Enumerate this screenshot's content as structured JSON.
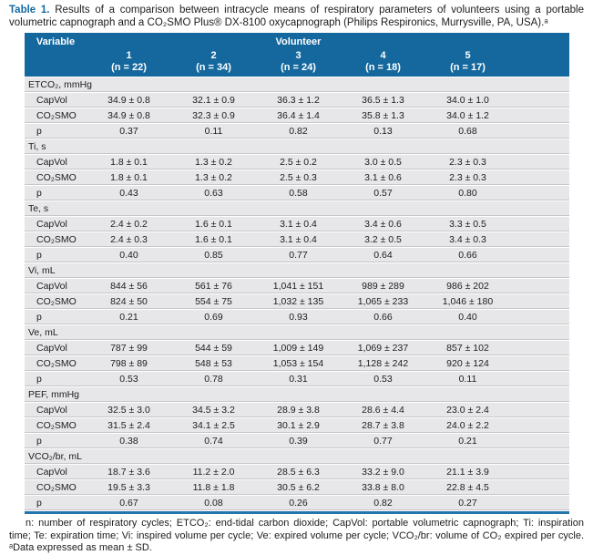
{
  "caption": {
    "label": "Table 1.",
    "text": " Results of a comparison between intracycle means of respiratory parameters of volunteers using a portable volumetric capnograph and a CO₂SMO Plus® DX-8100 oxycapnograph (Philips Respironics, Murrysville, PA, USA).ᵃ"
  },
  "table": {
    "header": {
      "variable_label": "Variable",
      "group_label": "Volunteer",
      "columns": [
        {
          "number": "1",
          "n": "(n = 22)"
        },
        {
          "number": "2",
          "n": "(n = 34)"
        },
        {
          "number": "3",
          "n": "(n = 24)"
        },
        {
          "number": "4",
          "n": "(n = 18)"
        },
        {
          "number": "5",
          "n": "(n = 17)"
        }
      ]
    },
    "sections": [
      {
        "name": "ETCO₂, mmHg",
        "rows": [
          {
            "label": "CapVol",
            "values": [
              "34.9 ± 0.8",
              "32.1 ± 0.9",
              "36.3 ± 1.2",
              "36.5 ± 1.3",
              "34.0 ± 1.0"
            ]
          },
          {
            "label": "CO₂SMO",
            "values": [
              "34.9 ± 0.8",
              "32.3 ± 0.9",
              "36.4 ± 1.4",
              "35.8 ± 1.3",
              "34.0 ± 1.2"
            ]
          },
          {
            "label": "p",
            "values": [
              "0.37",
              "0.11",
              "0.82",
              "0.13",
              "0.68"
            ]
          }
        ]
      },
      {
        "name": "Ti, s",
        "rows": [
          {
            "label": "CapVol",
            "values": [
              "1.8 ± 0.1",
              "1.3 ± 0.2",
              "2.5 ± 0.2",
              "3.0 ± 0.5",
              "2.3 ± 0.3"
            ]
          },
          {
            "label": "CO₂SMO",
            "values": [
              "1.8 ± 0.1",
              "1.3 ± 0.2",
              "2.5 ± 0.3",
              "3.1 ± 0.6",
              "2.3 ± 0.3"
            ]
          },
          {
            "label": "p",
            "values": [
              "0.43",
              "0.63",
              "0.58",
              "0.57",
              "0.80"
            ]
          }
        ]
      },
      {
        "name": "Te, s",
        "rows": [
          {
            "label": "CapVol",
            "values": [
              "2.4 ± 0.2",
              "1.6 ± 0.1",
              "3.1 ± 0.4",
              "3.4 ± 0.6",
              "3.3 ± 0.5"
            ]
          },
          {
            "label": "CO₂SMO",
            "values": [
              "2.4 ± 0.3",
              "1.6 ± 0.1",
              "3.1 ± 0.4",
              "3.2 ± 0.5",
              "3.4 ± 0.3"
            ]
          },
          {
            "label": "p",
            "values": [
              "0.40",
              "0.85",
              "0.77",
              "0.64",
              "0.66"
            ]
          }
        ]
      },
      {
        "name": "Vi, mL",
        "rows": [
          {
            "label": "CapVol",
            "values": [
              "844 ± 56",
              "561 ± 76",
              "1,041 ± 151",
              "989 ± 289",
              "986 ± 202"
            ]
          },
          {
            "label": "CO₂SMO",
            "values": [
              "824 ± 50",
              "554 ± 75",
              "1,032 ± 135",
              "1,065 ± 233",
              "1,046 ± 180"
            ]
          },
          {
            "label": "p",
            "values": [
              "0.21",
              "0.69",
              "0.93",
              "0.66",
              "0.40"
            ]
          }
        ]
      },
      {
        "name": "Ve, mL",
        "rows": [
          {
            "label": "CapVol",
            "values": [
              "787 ± 99",
              "544 ± 59",
              "1,009 ± 149",
              "1,069 ± 237",
              "857 ± 102"
            ]
          },
          {
            "label": "CO₂SMO",
            "values": [
              "798 ± 89",
              "548 ± 53",
              "1,053 ± 154",
              "1,128 ± 242",
              "920 ± 124"
            ]
          },
          {
            "label": "p",
            "values": [
              "0.53",
              "0.78",
              "0.31",
              "0.53",
              "0.11"
            ]
          }
        ]
      },
      {
        "name": "PEF, mmHg",
        "rows": [
          {
            "label": "CapVol",
            "values": [
              "32.5 ± 3.0",
              "34.5 ± 3.2",
              "28.9 ± 3.8",
              "28.6 ± 4.4",
              "23.0 ± 2.4"
            ]
          },
          {
            "label": "CO₂SMO",
            "values": [
              "31.5 ± 2.4",
              "34.1 ± 2.5",
              "30.1 ± 2.9",
              "28.7 ± 3.8",
              "24.0 ± 2.2"
            ]
          },
          {
            "label": "p",
            "values": [
              "0.38",
              "0.74",
              "0.39",
              "0.77",
              "0.21"
            ]
          }
        ]
      },
      {
        "name": "VCO₂/br, mL",
        "rows": [
          {
            "label": "CapVol",
            "values": [
              "18.7 ± 3.6",
              "11.2 ± 2.0",
              "28.5 ± 6.3",
              "33.2 ± 9.0",
              "21.1 ± 3.9"
            ]
          },
          {
            "label": "CO₂SMO",
            "values": [
              "19.5 ± 3.3",
              "11.8 ± 1.8",
              "30.5 ± 6.2",
              "33.8 ± 8.0",
              "22.8 ± 4.5"
            ]
          },
          {
            "label": "p",
            "values": [
              "0.67",
              "0.08",
              "0.26",
              "0.82",
              "0.27"
            ]
          }
        ]
      }
    ]
  },
  "footnote": "n: number of respiratory cycles; ETCO₂: end-tidal carbon dioxide; CapVol: portable volumetric capnograph; Ti: inspiration time; Te: expiration time; Vi: inspired volume per cycle; Ve: expired volume per cycle; VCO₂/br: volume of CO₂ expired per cycle. ᵃData expressed as mean ± SD.",
  "colors": {
    "header_bg": "#14689e",
    "accent_blue": "#14689e",
    "bottom_rule": "#2376ac",
    "row_bg": "#e7e7e9"
  }
}
